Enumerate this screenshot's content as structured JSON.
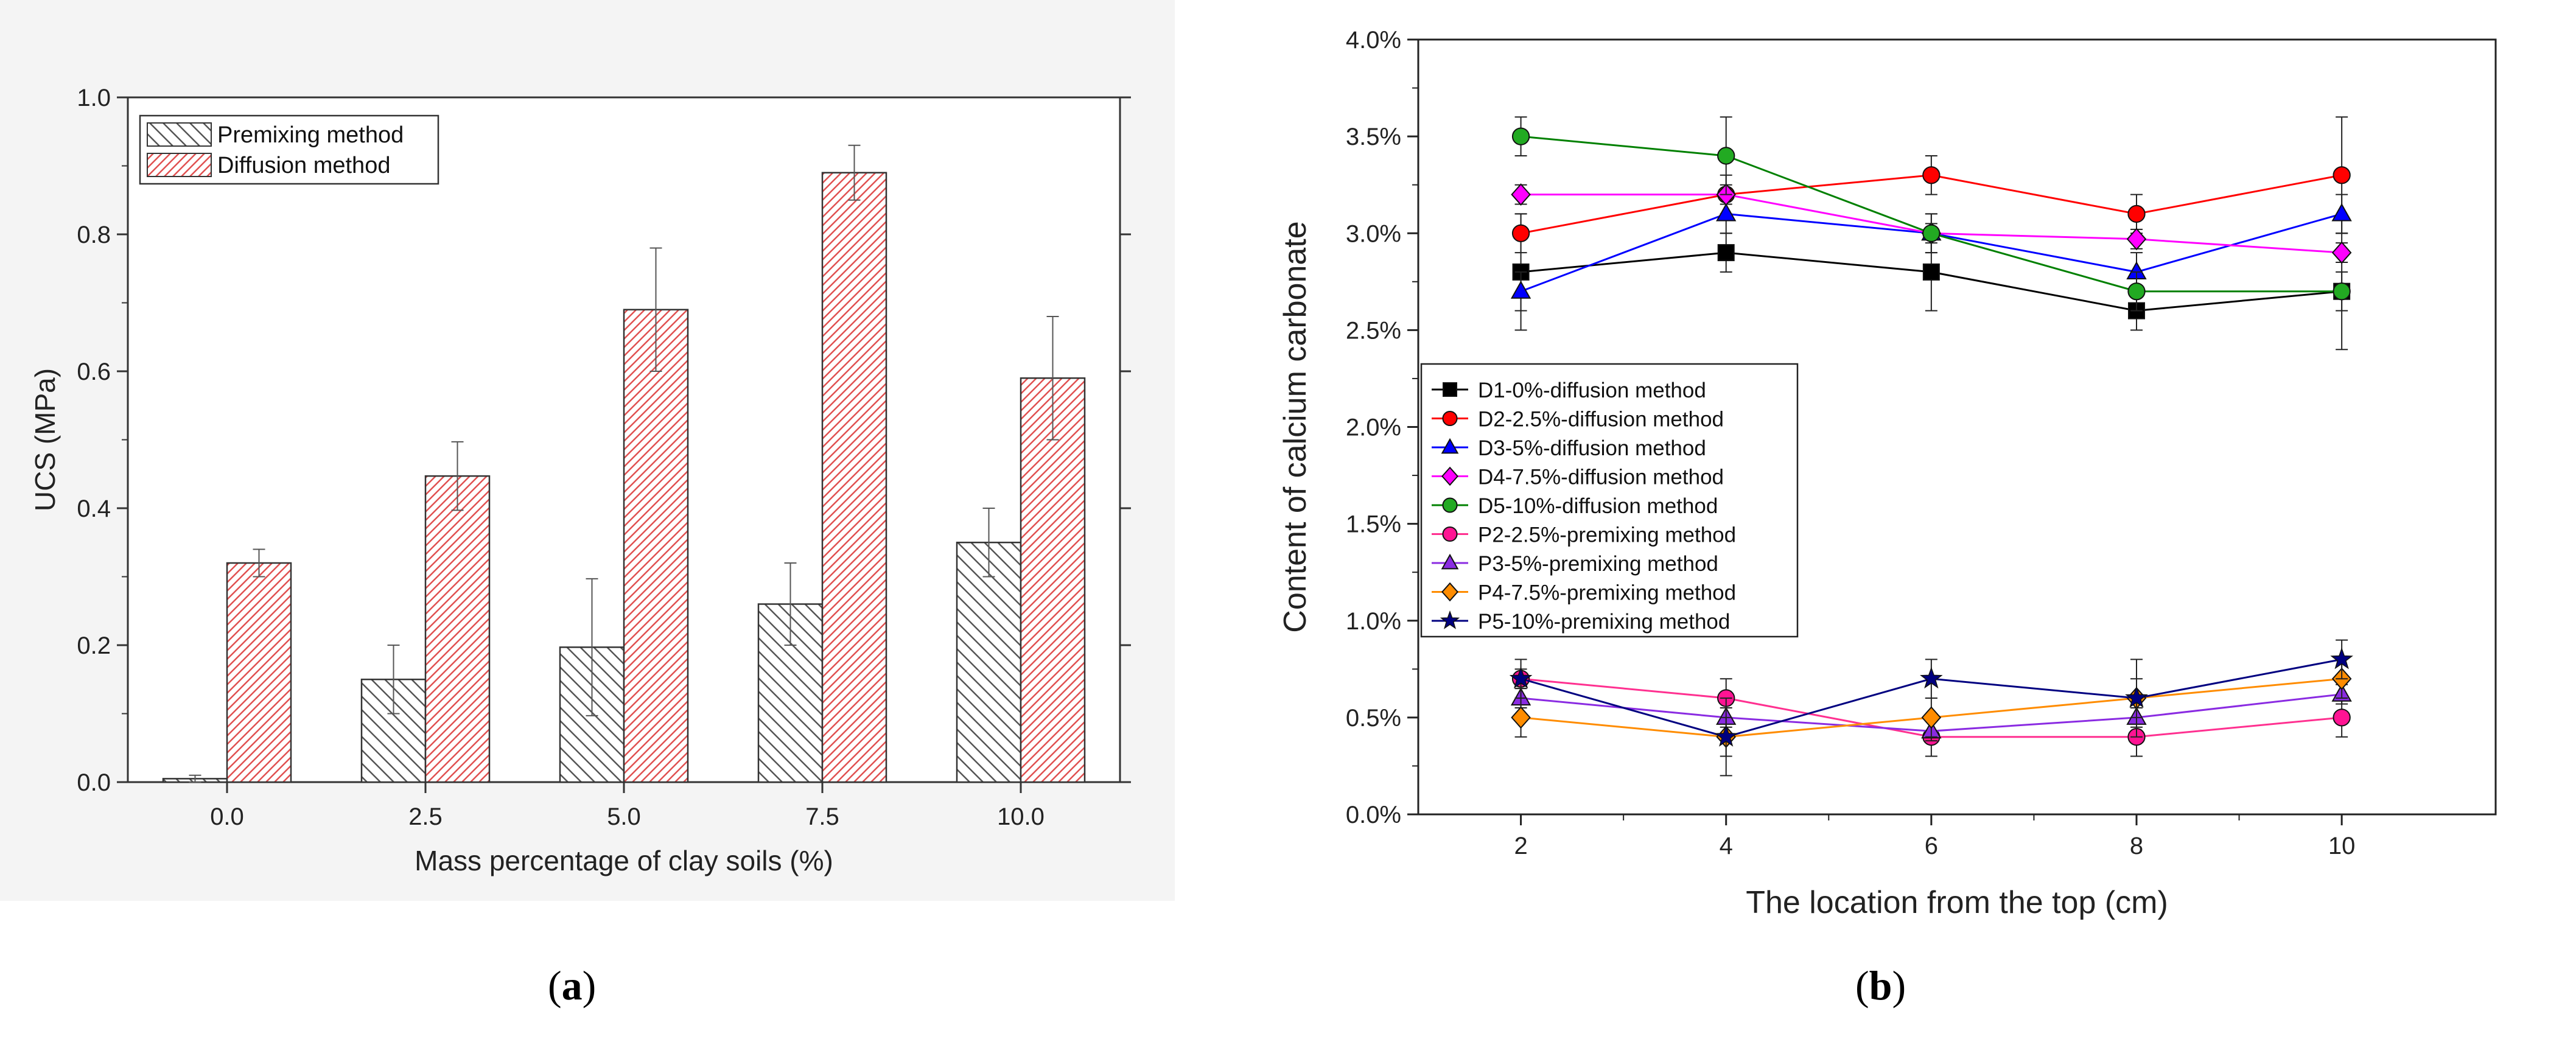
{
  "figure": {
    "caption_a": {
      "open": "(",
      "letter": "a",
      "close": ")"
    },
    "caption_b": {
      "open": "(",
      "letter": "b",
      "close": ")"
    }
  },
  "chart_data": [
    {
      "id": "a",
      "type": "bar",
      "title": "",
      "xlabel": "Mass percentage of clay soils (%)",
      "ylabel": "UCS (MPa)",
      "categories": [
        "0.0",
        "2.5",
        "5.0",
        "7.5",
        "10.0"
      ],
      "ylim": [
        0,
        1.0
      ],
      "yticks": [
        "0.0",
        "0.2",
        "0.4",
        "0.6",
        "0.8",
        "1.0"
      ],
      "grid": false,
      "legend_position": "top-left",
      "series": [
        {
          "name": "Premixing method",
          "color": "#555555",
          "hatch": "back-diagonal",
          "values": [
            0.005,
            0.15,
            0.197,
            0.26,
            0.35
          ],
          "errors": [
            0.005,
            0.05,
            0.1,
            0.06,
            0.05
          ]
        },
        {
          "name": "Diffusion method",
          "color": "#e05050",
          "hatch": "forward-diagonal",
          "values": [
            0.32,
            0.447,
            0.69,
            0.89,
            0.59
          ],
          "errors": [
            0.02,
            0.05,
            0.09,
            0.04,
            0.09
          ]
        }
      ]
    },
    {
      "id": "b",
      "type": "line",
      "title": "",
      "xlabel": "The location from the top (cm)",
      "ylabel": "Content of calcium carbonate",
      "x": [
        2,
        4,
        6,
        8,
        10
      ],
      "xlim": [
        1,
        11.5
      ],
      "xticks": [
        "2",
        "4",
        "6",
        "8",
        "10"
      ],
      "ylim": [
        0,
        4.0
      ],
      "yticks": [
        "0.0%",
        "0.5%",
        "1.0%",
        "1.5%",
        "2.0%",
        "2.5%",
        "3.0%",
        "3.5%",
        "4.0%"
      ],
      "grid": false,
      "legend_position": "center-left",
      "series": [
        {
          "name": "D1-0%-diffusion method",
          "color": "#000000",
          "marker": "square",
          "fill": "#000000",
          "values": [
            2.8,
            2.9,
            2.8,
            2.6,
            2.7
          ],
          "errors": [
            0.3,
            0.1,
            0.2,
            0.1,
            0.3
          ]
        },
        {
          "name": "D2-2.5%-diffusion method",
          "color": "#ff0000",
          "marker": "circle",
          "fill": "#ff0000",
          "values": [
            3.0,
            3.2,
            3.3,
            3.1,
            3.3
          ],
          "errors": [
            0.1,
            0.1,
            0.1,
            0.1,
            0.3
          ]
        },
        {
          "name": "D3-5%-diffusion method",
          "color": "#0000ff",
          "marker": "triangle",
          "fill": "#0000ff",
          "values": [
            2.7,
            3.1,
            3.0,
            2.8,
            3.1
          ],
          "errors": [
            0.1,
            0.1,
            0.1,
            0.1,
            0.1
          ]
        },
        {
          "name": "D4-7.5%-diffusion method",
          "color": "#ff00ff",
          "marker": "diamond",
          "fill": "#ff00ff",
          "values": [
            3.2,
            3.2,
            3.0,
            2.97,
            2.9
          ],
          "errors": [
            0.05,
            0.05,
            0.05,
            0.05,
            0.05
          ]
        },
        {
          "name": "D5-10%-diffusion method",
          "color": "#008000",
          "marker": "circle",
          "fill": "#22aa22",
          "values": [
            3.5,
            3.4,
            3.0,
            2.7,
            2.7
          ],
          "errors": [
            0.1,
            0.2,
            0.1,
            0.1,
            0.1
          ]
        },
        {
          "name": "P2-2.5%-premixing method",
          "color": "#ff3090",
          "marker": "circle",
          "fill": "#ff1493",
          "values": [
            0.7,
            0.6,
            0.4,
            0.4,
            0.5
          ],
          "errors": [
            0.05,
            0.1,
            0.1,
            0.1,
            0.1
          ]
        },
        {
          "name": "P3-5%-premixing method",
          "color": "#8a2be2",
          "marker": "triangle",
          "fill": "#8a2be2",
          "values": [
            0.6,
            0.5,
            0.43,
            0.5,
            0.62
          ],
          "errors": [
            0.05,
            0.05,
            0.05,
            0.05,
            0.05
          ]
        },
        {
          "name": "P4-7.5%-premixing method",
          "color": "#ff8c00",
          "marker": "diamond",
          "fill": "#ff8c00",
          "values": [
            0.5,
            0.4,
            0.5,
            0.6,
            0.7
          ],
          "errors": [
            0.1,
            0.1,
            0.1,
            0.1,
            0.1
          ]
        },
        {
          "name": "P5-10%-premixing method",
          "color": "#000080",
          "marker": "star",
          "fill": "#000080",
          "values": [
            0.7,
            0.4,
            0.7,
            0.6,
            0.8
          ],
          "errors": [
            0.1,
            0.2,
            0.1,
            0.2,
            0.1
          ]
        }
      ]
    }
  ]
}
